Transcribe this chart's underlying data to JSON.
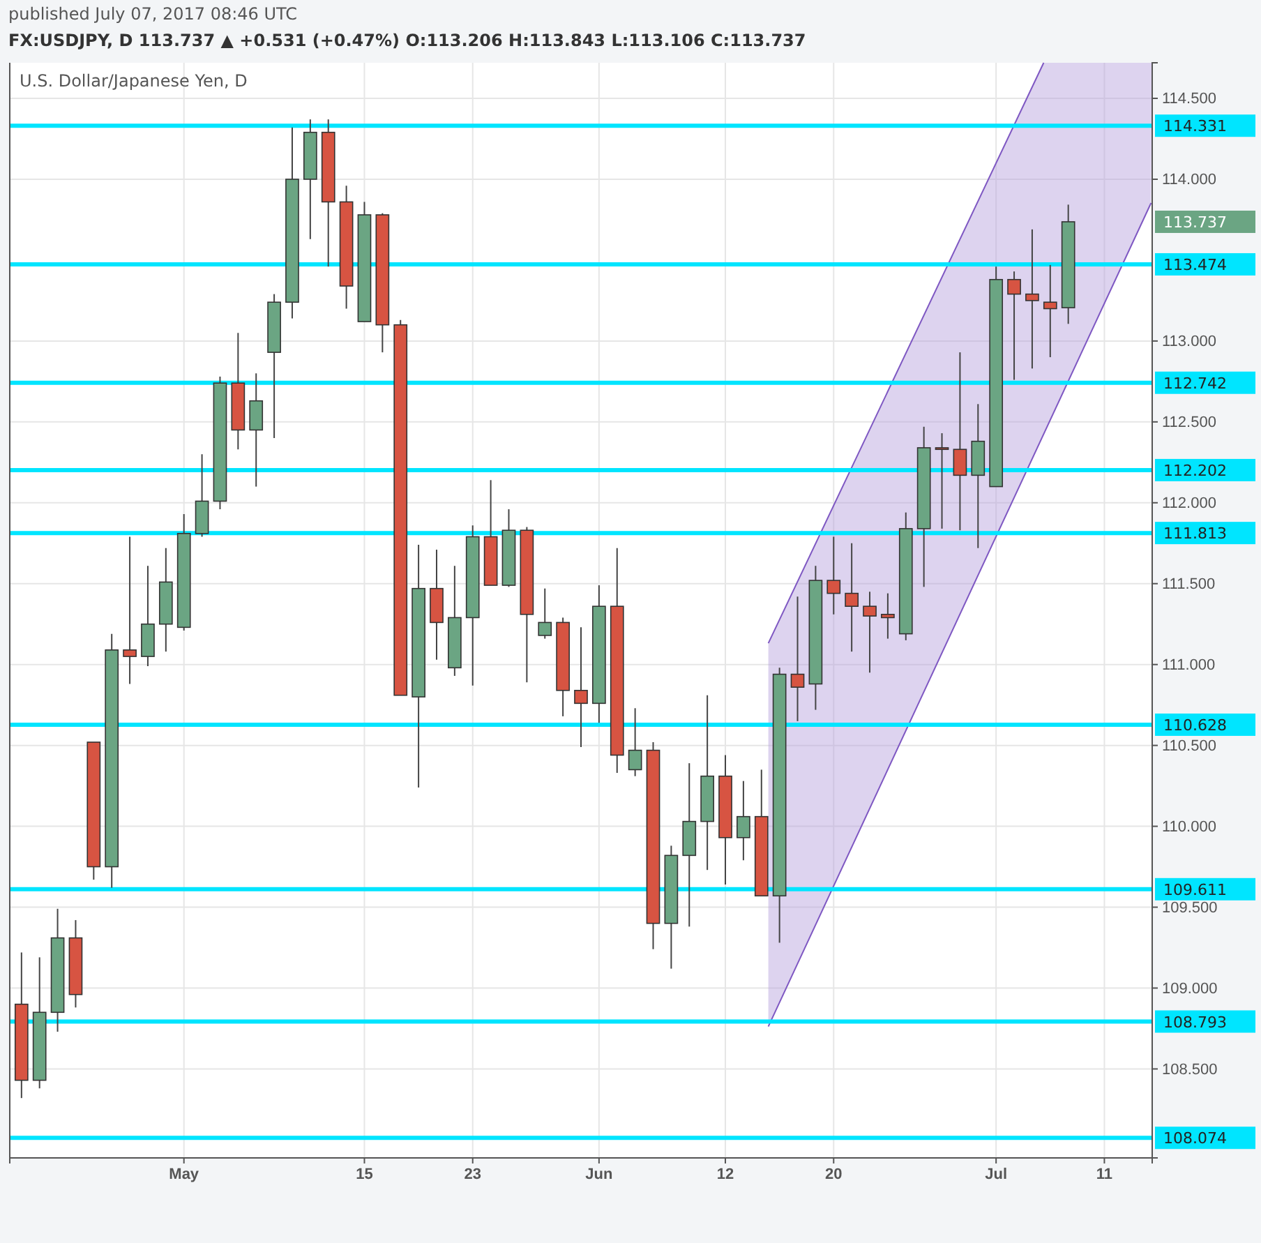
{
  "chart_data": {
    "type": "candlestick",
    "title": "U.S. Dollar/Japanese Yen, D",
    "subtitle": "published July 07, 2017 08:46 UTC",
    "annotations": [
      "FX:USDJPY, D 113.737 ▲ +0.531 (+0.47%) O:113.206 H:113.843 L:113.106 C:113.737",
      "113.737"
    ],
    "categories": [
      null,
      null,
      null,
      null,
      null,
      null,
      null,
      null,
      null,
      "May",
      null,
      null,
      null,
      null,
      null,
      null,
      null,
      null,
      null,
      "15",
      null,
      null,
      null,
      null,
      null,
      "23",
      null,
      null,
      null,
      null,
      null,
      null,
      "Jun",
      null,
      null,
      null,
      null,
      null,
      null,
      "12",
      null,
      null,
      null,
      null,
      null,
      "20",
      null,
      null,
      null,
      null,
      null,
      null,
      null,
      null,
      "Jul",
      null,
      null,
      null,
      null,
      null,
      "11",
      null,
      null
    ],
    "ohlc": [
      [
        108.9,
        109.22,
        108.32,
        108.43
      ],
      [
        108.43,
        109.19,
        108.38,
        108.85
      ],
      [
        108.85,
        109.49,
        108.73,
        109.31
      ],
      [
        109.31,
        109.42,
        108.88,
        108.96
      ],
      [
        110.52,
        110.52,
        109.67,
        109.75
      ],
      [
        109.75,
        111.19,
        109.62,
        111.09
      ],
      [
        111.09,
        111.79,
        110.88,
        111.05
      ],
      [
        111.05,
        111.61,
        110.99,
        111.25
      ],
      [
        111.25,
        111.72,
        111.08,
        111.51
      ],
      [
        111.23,
        111.93,
        111.21,
        111.81
      ],
      [
        111.81,
        112.3,
        111.79,
        112.01
      ],
      [
        112.01,
        112.78,
        111.96,
        112.74
      ],
      [
        112.74,
        113.05,
        112.33,
        112.45
      ],
      [
        112.45,
        112.8,
        112.1,
        112.63
      ],
      [
        112.93,
        113.29,
        112.4,
        113.24
      ],
      [
        113.24,
        114.32,
        113.14,
        114.0
      ],
      [
        114.0,
        114.37,
        113.63,
        114.29
      ],
      [
        114.29,
        114.37,
        113.46,
        113.86
      ],
      [
        113.86,
        113.96,
        113.2,
        113.34
      ],
      [
        113.12,
        113.86,
        113.12,
        113.78
      ],
      [
        113.78,
        113.79,
        112.93,
        113.1
      ],
      [
        113.1,
        113.13,
        110.81,
        110.81
      ],
      [
        110.8,
        111.74,
        110.24,
        111.47
      ],
      [
        111.47,
        111.71,
        111.03,
        111.26
      ],
      [
        110.98,
        111.61,
        110.93,
        111.29
      ],
      [
        111.29,
        111.86,
        110.87,
        111.79
      ],
      [
        111.79,
        112.14,
        111.49,
        111.49
      ],
      [
        111.49,
        111.96,
        111.48,
        111.83
      ],
      [
        111.83,
        111.85,
        110.89,
        111.31
      ],
      [
        111.18,
        111.47,
        111.16,
        111.26
      ],
      [
        111.26,
        111.29,
        110.68,
        110.84
      ],
      [
        110.84,
        111.23,
        110.49,
        110.76
      ],
      [
        110.76,
        111.49,
        110.64,
        111.36
      ],
      [
        111.36,
        111.72,
        110.33,
        110.44
      ],
      [
        110.35,
        110.73,
        110.31,
        110.47
      ],
      [
        110.47,
        110.52,
        109.24,
        109.4
      ],
      [
        109.4,
        109.88,
        109.12,
        109.82
      ],
      [
        109.82,
        110.39,
        109.38,
        110.03
      ],
      [
        110.03,
        110.81,
        109.73,
        110.31
      ],
      [
        110.31,
        110.44,
        109.64,
        109.93
      ],
      [
        109.93,
        110.28,
        109.79,
        110.06
      ],
      [
        110.06,
        110.35,
        109.57,
        109.57
      ],
      [
        109.57,
        110.98,
        109.28,
        110.94
      ],
      [
        110.94,
        111.42,
        110.65,
        110.86
      ],
      [
        110.88,
        111.61,
        110.72,
        111.52
      ],
      [
        111.52,
        111.79,
        111.31,
        111.44
      ],
      [
        111.44,
        111.75,
        111.08,
        111.36
      ],
      [
        111.36,
        111.45,
        110.95,
        111.3
      ],
      [
        111.31,
        111.44,
        111.16,
        111.29
      ],
      [
        111.19,
        111.94,
        111.15,
        111.84
      ],
      [
        111.84,
        112.47,
        111.48,
        112.34
      ],
      [
        112.34,
        112.43,
        111.84,
        112.33
      ],
      [
        112.33,
        112.93,
        111.83,
        112.17
      ],
      [
        112.17,
        112.61,
        111.72,
        112.38
      ],
      [
        112.1,
        113.46,
        112.1,
        113.38
      ],
      [
        113.38,
        113.43,
        112.76,
        113.29
      ],
      [
        113.29,
        113.69,
        112.83,
        113.25
      ],
      [
        113.24,
        113.47,
        112.9,
        113.2
      ],
      [
        113.206,
        113.843,
        113.106,
        113.737
      ],
      null,
      null,
      null,
      null
    ],
    "colors": [
      "#d75442",
      "#6ba583",
      "#6ba583",
      "#d75442",
      "#d75442",
      "#6ba583",
      "#d75442",
      "#6ba583",
      "#6ba583",
      "#6ba583",
      "#6ba583",
      "#6ba583",
      "#d75442",
      "#6ba583",
      "#6ba583",
      "#6ba583",
      "#6ba583",
      "#d75442",
      "#d75442",
      "#6ba583",
      "#d75442",
      "#d75442",
      "#6ba583",
      "#d75442",
      "#6ba583",
      "#6ba583",
      "#d75442",
      "#6ba583",
      "#d75442",
      "#6ba583",
      "#d75442",
      "#d75442",
      "#6ba583",
      "#d75442",
      "#6ba583",
      "#d75442",
      "#6ba583",
      "#6ba583",
      "#6ba583",
      "#d75442",
      "#6ba583",
      "#d75442",
      "#6ba583",
      "#d75442",
      "#6ba583",
      "#d75442",
      "#d75442",
      "#d75442",
      "#d75442",
      "#6ba583",
      "#6ba583",
      "#d75442",
      "#d75442",
      "#6ba583",
      "#6ba583",
      "#d75442",
      "#d75442",
      "#d75442",
      "#6ba583",
      null,
      null,
      null,
      null
    ],
    "ylim": [
      107.95,
      114.72
    ],
    "yticks": [
      {
        "value": 108.5,
        "label": "108.500"
      },
      {
        "value": 109,
        "label": "109.000"
      },
      {
        "value": 109.5,
        "label": "109.500"
      },
      {
        "value": 110,
        "label": "110.000"
      },
      {
        "value": 110.5,
        "label": "110.500"
      },
      {
        "value": 111,
        "label": "111.000"
      },
      {
        "value": 111.5,
        "label": "111.500"
      },
      {
        "value": 112,
        "label": "112.000"
      },
      {
        "value": 112.5,
        "label": "112.500"
      },
      {
        "value": 113,
        "label": "113.000"
      },
      {
        "value": 114,
        "label": "114.000"
      },
      {
        "value": 114.5,
        "label": "114.500"
      }
    ],
    "ref_lines": [
      {
        "axis": "y",
        "value": 114.331,
        "label": "114.331",
        "color": "#00e5ff"
      },
      {
        "axis": "y",
        "value": 113.474,
        "label": "113.474",
        "color": "#00e5ff"
      },
      {
        "axis": "y",
        "value": 112.742,
        "label": "112.742",
        "color": "#00e5ff"
      },
      {
        "axis": "y",
        "value": 112.202,
        "label": "112.202",
        "color": "#00e5ff"
      },
      {
        "axis": "y",
        "value": 111.813,
        "label": "111.813",
        "color": "#00e5ff"
      },
      {
        "axis": "y",
        "value": 110.628,
        "label": "110.628",
        "color": "#00e5ff"
      },
      {
        "axis": "y",
        "value": 109.611,
        "label": "109.611",
        "color": "#00e5ff"
      },
      {
        "axis": "y",
        "value": 108.793,
        "label": "108.793",
        "color": "#00e5ff"
      },
      {
        "axis": "y",
        "value": 108.074,
        "label": "108.074",
        "color": "#00e5ff"
      }
    ],
    "grid": true
  }
}
